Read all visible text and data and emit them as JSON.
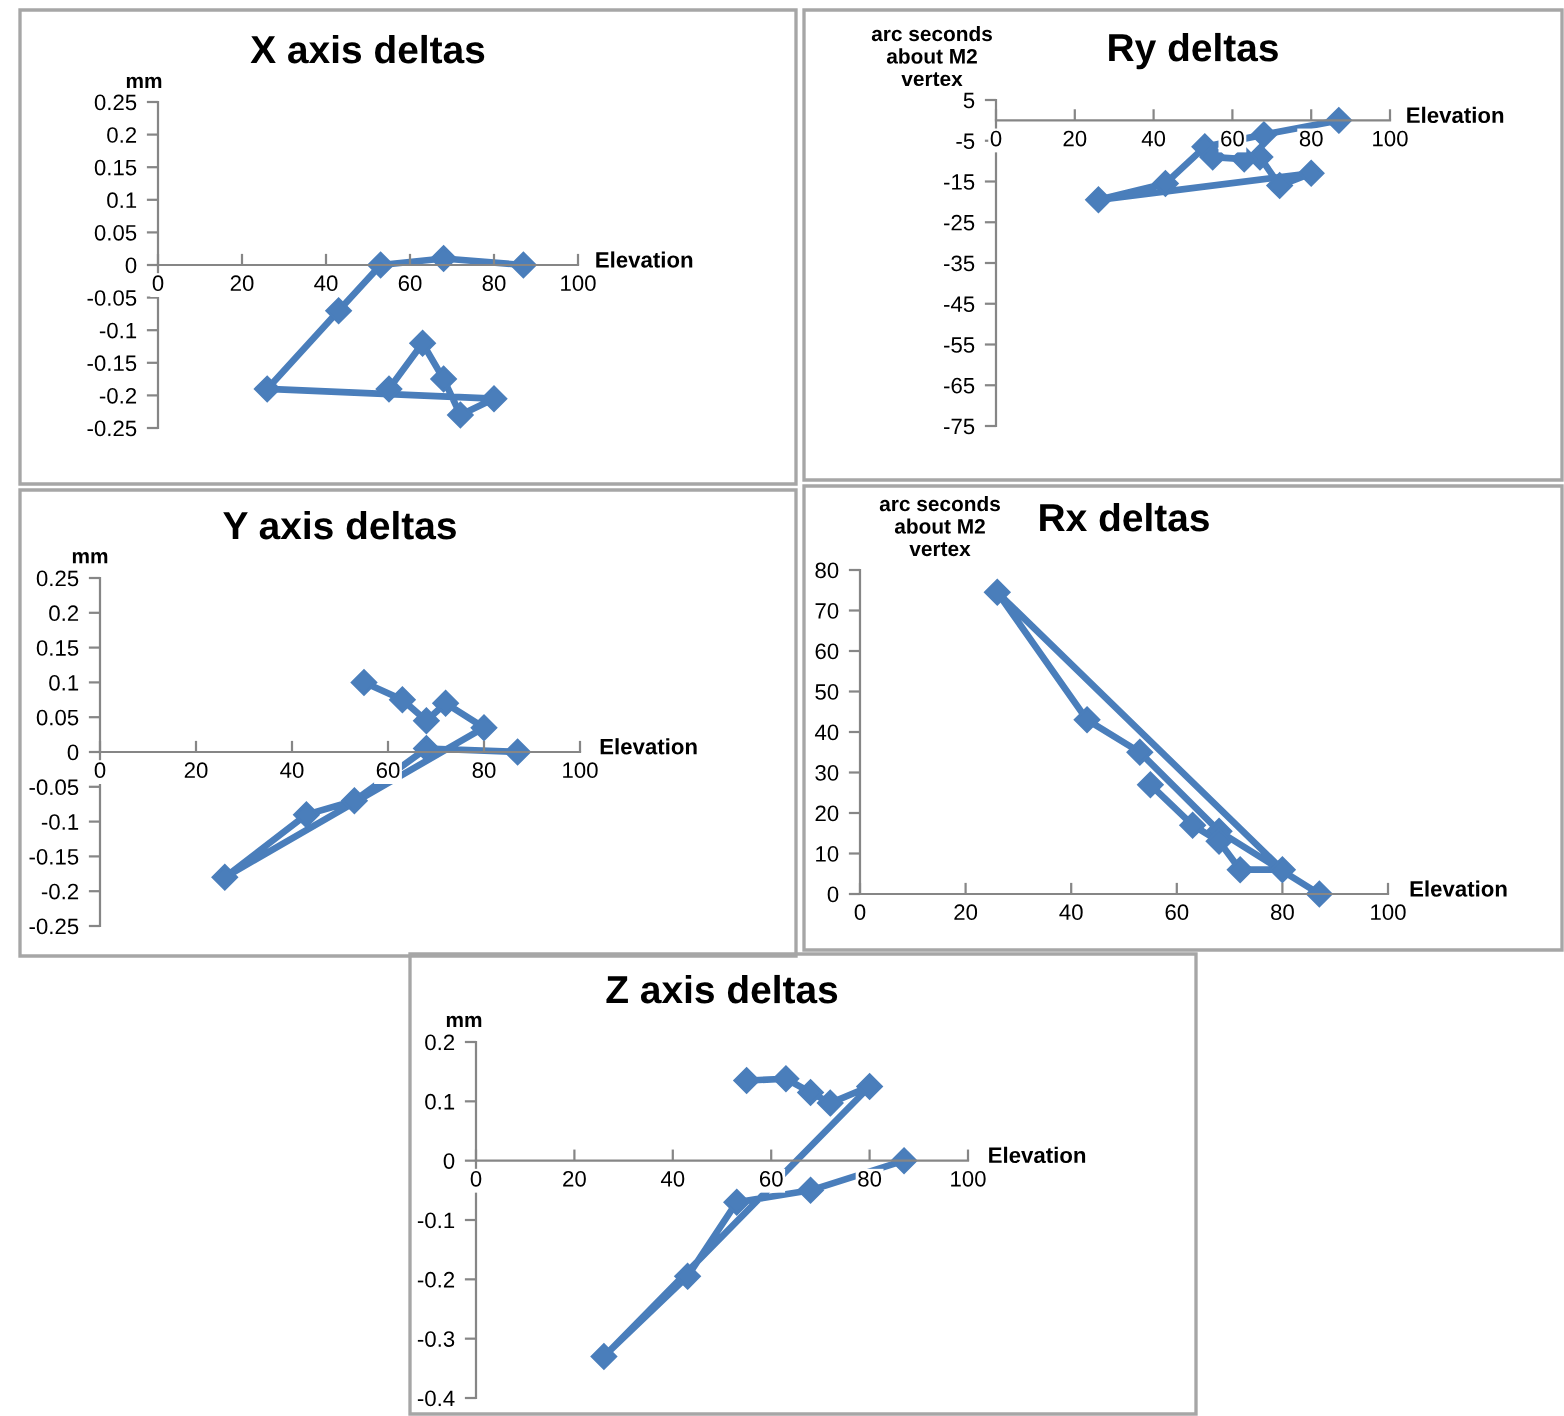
{
  "chart_data": [
    {
      "type": "line",
      "title": "X axis deltas",
      "ylabel": "mm",
      "xlabel": "Elevation",
      "marker": "diamond",
      "line_style": "solid",
      "grid": false,
      "x": [
        87,
        68,
        53,
        43,
        26,
        80,
        72,
        68,
        63,
        55
      ],
      "series": [
        {
          "color": "#4a7ebb",
          "values": [
            0,
            0.01,
            0,
            -0.07,
            -0.19,
            -0.205,
            -0.23,
            -0.175,
            -0.12,
            -0.19
          ]
        }
      ],
      "xlim": [
        0,
        100
      ],
      "xticks": [
        0,
        20,
        40,
        60,
        80,
        100
      ],
      "ylim": [
        -0.25,
        0.25
      ],
      "yticks": [
        -0.25,
        -0.2,
        -0.15,
        -0.1,
        -0.05,
        0,
        0.05,
        0.1,
        0.15,
        0.2,
        0.25
      ]
    },
    {
      "type": "line",
      "title": "Ry deltas",
      "ylabel": "arc seconds\nabout M2\nvertex",
      "xlabel": "Elevation",
      "marker": "diamond",
      "line_style": "solid",
      "grid": false,
      "x": [
        87,
        68,
        53,
        43,
        26,
        80,
        72,
        67,
        63,
        55
      ],
      "series": [
        {
          "color": "#4a7ebb",
          "values": [
            0,
            -3.5,
            -6.5,
            -15.5,
            -19.5,
            -13,
            -16,
            -9,
            -9.5,
            -9
          ]
        }
      ],
      "xlim": [
        0,
        100
      ],
      "xticks": [
        0,
        20,
        40,
        60,
        80,
        100
      ],
      "ylim": [
        -75,
        5
      ],
      "yticks": [
        -75,
        -65,
        -55,
        -45,
        -35,
        -25,
        -15,
        -5,
        5
      ]
    },
    {
      "type": "line",
      "title": "Y axis deltas",
      "ylabel": "mm",
      "xlabel": "Elevation",
      "marker": "diamond",
      "line_style": "solid",
      "grid": false,
      "x": [
        87,
        68,
        53,
        43,
        26,
        80,
        72,
        68,
        63,
        55
      ],
      "series": [
        {
          "color": "#4a7ebb",
          "values": [
            0,
            0.005,
            -0.07,
            -0.09,
            -0.18,
            0.035,
            0.07,
            0.045,
            0.075,
            0.1
          ]
        }
      ],
      "xlim": [
        0,
        100
      ],
      "xticks": [
        0,
        20,
        40,
        60,
        80,
        100
      ],
      "ylim": [
        -0.25,
        0.25
      ],
      "yticks": [
        -0.25,
        -0.2,
        -0.15,
        -0.1,
        -0.05,
        0,
        0.05,
        0.1,
        0.15,
        0.2,
        0.25
      ]
    },
    {
      "type": "line",
      "title": "Rx deltas",
      "ylabel": "arc seconds\nabout M2\nvertex",
      "xlabel": "Elevation",
      "marker": "diamond",
      "line_style": "solid",
      "grid": false,
      "x": [
        87,
        68,
        53,
        43,
        26,
        80,
        72,
        68,
        63,
        55
      ],
      "series": [
        {
          "color": "#4a7ebb",
          "values": [
            0,
            15.5,
            35,
            43,
            74.5,
            6,
            6,
            13,
            17,
            27
          ]
        }
      ],
      "xlim": [
        0,
        100
      ],
      "xticks": [
        0,
        20,
        40,
        60,
        80,
        100
      ],
      "ylim": [
        0,
        80
      ],
      "yticks": [
        0,
        10,
        20,
        30,
        40,
        50,
        60,
        70,
        80
      ]
    },
    {
      "type": "line",
      "title": "Z axis deltas",
      "ylabel": "mm",
      "xlabel": "Elevation",
      "marker": "diamond",
      "line_style": "solid",
      "grid": false,
      "x": [
        87,
        68,
        53,
        43,
        26,
        80,
        72,
        68,
        63,
        55
      ],
      "series": [
        {
          "color": "#4a7ebb",
          "values": [
            0,
            -0.05,
            -0.07,
            -0.195,
            -0.33,
            0.125,
            0.097,
            0.115,
            0.138,
            0.135
          ]
        }
      ],
      "xlim": [
        0,
        100
      ],
      "xticks": [
        0,
        20,
        40,
        60,
        80,
        100
      ],
      "ylim": [
        -0.4,
        0.2
      ],
      "yticks": [
        -0.4,
        -0.3,
        -0.2,
        -0.1,
        0,
        0.1,
        0.2
      ]
    }
  ]
}
